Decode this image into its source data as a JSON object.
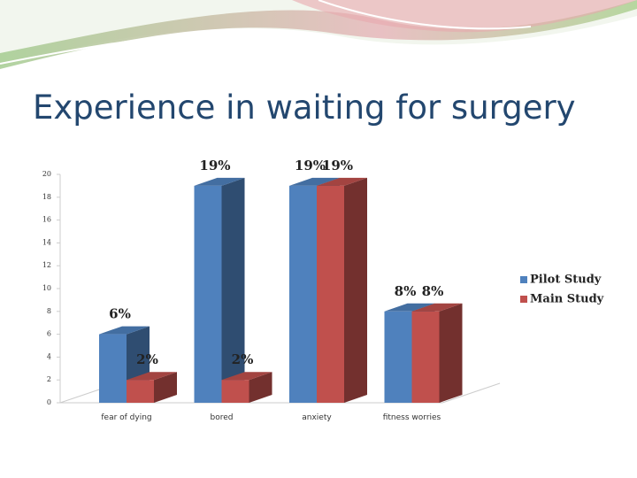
{
  "chart_data": {
    "type": "bar3d",
    "title": "Experience in waiting for surgery",
    "categories": [
      "fear of dying",
      "bored",
      "anxiety",
      "fitness worries"
    ],
    "series": [
      {
        "name": "Pilot Study",
        "color": "#4f81bd",
        "values": [
          6,
          19,
          19,
          8
        ],
        "value_labels": [
          "6%",
          "19%",
          "19%",
          "8%"
        ]
      },
      {
        "name": "Main Study",
        "color": "#c0504d",
        "values": [
          2,
          2,
          19,
          8
        ],
        "value_labels": [
          "2%",
          "2%",
          "19%",
          "8%"
        ]
      }
    ],
    "ylim": [
      0,
      20
    ],
    "yticks": [
      0,
      2,
      4,
      6,
      8,
      10,
      12,
      14,
      16,
      18,
      20
    ],
    "legend": "right"
  }
}
